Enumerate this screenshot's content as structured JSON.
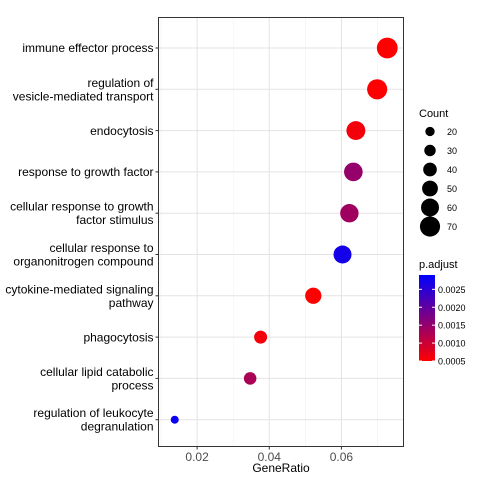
{
  "chart_data": {
    "type": "scatter",
    "xlabel": "GeneRatio",
    "ylabel": "",
    "xlim": [
      0.0093,
      0.0772
    ],
    "grid": true,
    "x_ticks": [
      0.02,
      0.04,
      0.06
    ],
    "x_tick_labels": [
      "0.02",
      "0.04",
      "0.06"
    ],
    "categories": [
      "immune effector process",
      "regulation of vesicle-mediated transport",
      "endocytosis",
      "response to growth factor",
      "cellular response to growth factor stimulus",
      "cellular response to organonitrogen compound",
      "cytokine-mediated signaling pathway",
      "phagocytosis",
      "cellular lipid catabolic process",
      "regulation of leukocyte degranulation"
    ],
    "category_lines": [
      [
        "immune effector process"
      ],
      [
        "regulation of",
        "vesicle-mediated transport"
      ],
      [
        "endocytosis"
      ],
      [
        "response to growth factor"
      ],
      [
        "cellular response to growth",
        "factor stimulus"
      ],
      [
        "cellular response to",
        "organonitrogen compound"
      ],
      [
        "cytokine-mediated signaling",
        "pathway"
      ],
      [
        "phagocytosis"
      ],
      [
        "cellular lipid catabolic",
        "process"
      ],
      [
        "regulation of leukocyte",
        "degranulation"
      ]
    ],
    "points": [
      {
        "term": "immune effector process",
        "gene_ratio": 0.0727,
        "count": 73,
        "p_adjust": 0.0005
      },
      {
        "term": "regulation of vesicle-mediated transport",
        "gene_ratio": 0.0699,
        "count": 70,
        "p_adjust": 0.00051
      },
      {
        "term": "endocytosis",
        "gene_ratio": 0.064,
        "count": 64,
        "p_adjust": 0.0006
      },
      {
        "term": "response to growth factor",
        "gene_ratio": 0.0633,
        "count": 63,
        "p_adjust": 0.0015
      },
      {
        "term": "cellular response to growth factor stimulus",
        "gene_ratio": 0.0622,
        "count": 62,
        "p_adjust": 0.0014
      },
      {
        "term": "cellular response to organonitrogen compound",
        "gene_ratio": 0.0603,
        "count": 60,
        "p_adjust": 0.0027
      },
      {
        "term": "cytokine-mediated signaling pathway",
        "gene_ratio": 0.0522,
        "count": 52,
        "p_adjust": 0.0005
      },
      {
        "term": "phagocytosis",
        "gene_ratio": 0.0376,
        "count": 37,
        "p_adjust": 0.0006
      },
      {
        "term": "cellular lipid catabolic process",
        "gene_ratio": 0.0347,
        "count": 35,
        "p_adjust": 0.0013
      },
      {
        "term": "regulation of leukocyte degranulation",
        "gene_ratio": 0.0138,
        "count": 14,
        "p_adjust": 0.0028
      }
    ],
    "legend": {
      "position": "right",
      "size_title": "Count",
      "size_values": [
        20,
        30,
        40,
        50,
        60,
        70
      ],
      "size_labels": [
        "20",
        "30",
        "40",
        "50",
        "60",
        "70"
      ],
      "color_title": "p.adjust",
      "color_range": [
        0.0005,
        0.0029
      ],
      "color_low": "#ff0000",
      "color_high": "#0000ff",
      "color_ticks": [
        0.0005,
        0.001,
        0.0015,
        0.002,
        0.0025
      ],
      "color_tick_labels": [
        "0.0005",
        "0.0010",
        "0.0015",
        "0.0020",
        "0.0025"
      ]
    }
  }
}
